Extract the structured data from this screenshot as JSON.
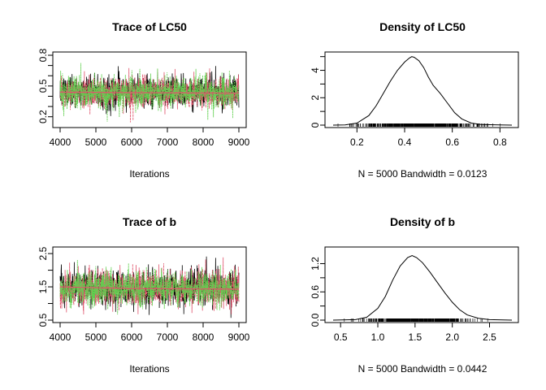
{
  "colors": {
    "chain1": "#000000",
    "chain2": "#DF536B",
    "chain3": "#61D04F",
    "axis": "#000000",
    "smooth": "#DF536B"
  },
  "chart_data": [
    {
      "type": "line",
      "subtype": "mcmc-trace",
      "title": "Trace of LC50",
      "xlabel": "Iterations",
      "ylabel": "",
      "xlim": [
        4000,
        9000
      ],
      "ylim": [
        0.15,
        0.8
      ],
      "x_ticks": [
        4000,
        5000,
        6000,
        7000,
        8000,
        9000
      ],
      "y_ticks": [
        "0.2",
        "0.5",
        "0.8"
      ],
      "y_minor_ticks": [
        0.3,
        0.4,
        0.6,
        0.7
      ],
      "series": [
        {
          "mean": 0.44,
          "sd": 0.08,
          "min": 0.12,
          "max": 0.8
        },
        {
          "mean": 0.44,
          "sd": 0.08,
          "min": 0.12,
          "max": 0.8
        },
        {
          "mean": 0.44,
          "sd": 0.08,
          "min": 0.12,
          "max": 0.8
        }
      ],
      "smooth_line": [
        [
          4000,
          0.44
        ],
        [
          6000,
          0.435
        ],
        [
          9000,
          0.43
        ]
      ]
    },
    {
      "type": "line",
      "subtype": "density",
      "title": "Density of LC50",
      "xlabel": "N = 5000   Bandwidth = 0.0123",
      "ylabel": "",
      "xlim": [
        0.1,
        0.85
      ],
      "ylim": [
        0,
        5.1
      ],
      "x_ticks": [
        "0.2",
        "0.4",
        "0.6",
        "0.8"
      ],
      "y_ticks": [
        "0",
        "2",
        "4"
      ],
      "y_minor_ticks": [
        1,
        3,
        5
      ],
      "density": {
        "x": [
          0.1,
          0.15,
          0.2,
          0.25,
          0.28,
          0.31,
          0.34,
          0.37,
          0.4,
          0.42,
          0.43,
          0.44,
          0.46,
          0.48,
          0.5,
          0.52,
          0.55,
          0.58,
          0.61,
          0.64,
          0.68,
          0.72,
          0.8,
          0.85
        ],
        "y": [
          0.0,
          0.02,
          0.15,
          0.7,
          1.4,
          2.3,
          3.2,
          4.0,
          4.6,
          4.9,
          5.0,
          4.95,
          4.7,
          4.2,
          3.5,
          2.9,
          2.3,
          1.6,
          0.9,
          0.45,
          0.15,
          0.05,
          0.01,
          0.0
        ]
      },
      "rug_range": [
        0.12,
        0.8
      ]
    },
    {
      "type": "line",
      "subtype": "mcmc-trace",
      "title": "Trace of b",
      "xlabel": "Iterations",
      "ylabel": "",
      "xlim": [
        4000,
        9000
      ],
      "ylim": [
        0.5,
        2.6
      ],
      "x_ticks": [
        4000,
        5000,
        6000,
        7000,
        8000,
        9000
      ],
      "y_ticks": [
        "0.5",
        "1.5",
        "2.5"
      ],
      "y_minor_ticks": [
        1.0,
        2.0
      ],
      "series": [
        {
          "mean": 1.45,
          "sd": 0.28,
          "min": 0.55,
          "max": 2.55
        },
        {
          "mean": 1.45,
          "sd": 0.28,
          "min": 0.55,
          "max": 2.55
        },
        {
          "mean": 1.45,
          "sd": 0.28,
          "min": 0.55,
          "max": 2.55
        }
      ],
      "smooth_line": [
        [
          4000,
          1.5
        ],
        [
          6000,
          1.45
        ],
        [
          9000,
          1.43
        ]
      ]
    },
    {
      "type": "line",
      "subtype": "density",
      "title": "Density of b",
      "xlabel": "N = 5000   Bandwidth = 0.0442",
      "ylabel": "",
      "xlim": [
        0.4,
        2.8
      ],
      "ylim": [
        0,
        1.45
      ],
      "x_ticks": [
        "0.5",
        "1.0",
        "1.5",
        "2.0",
        "2.5"
      ],
      "y_ticks": [
        "0.0",
        "0.6",
        "1.2"
      ],
      "y_minor_ticks": [
        0.3,
        0.9
      ],
      "density": {
        "x": [
          0.4,
          0.7,
          0.85,
          1.0,
          1.1,
          1.2,
          1.3,
          1.4,
          1.46,
          1.52,
          1.6,
          1.7,
          1.8,
          1.9,
          2.0,
          2.1,
          2.2,
          2.35,
          2.5,
          2.8
        ],
        "y": [
          0.0,
          0.01,
          0.06,
          0.25,
          0.5,
          0.85,
          1.15,
          1.33,
          1.37,
          1.33,
          1.22,
          1.02,
          0.8,
          0.58,
          0.38,
          0.22,
          0.11,
          0.04,
          0.01,
          0.0
        ]
      },
      "rug_range": [
        0.55,
        2.55
      ]
    }
  ]
}
